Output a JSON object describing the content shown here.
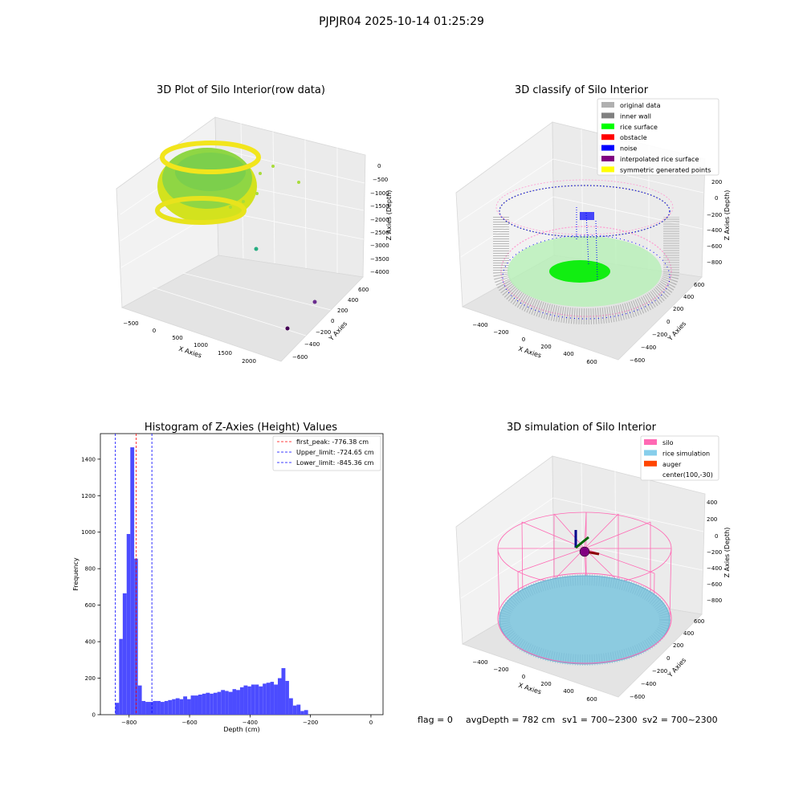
{
  "suptitle": "PJPJR04 2025-10-14 01:25:29",
  "footer": {
    "flag": "flag = 0",
    "avg_depth": "avgDepth = 782 cm",
    "sv1": "sv1 = 700~2300",
    "sv2": "sv2 = 700~2300"
  },
  "chart_data": [
    {
      "type": "scatter",
      "projection": "3d",
      "title": "3D Plot of Silo Interior(row data)",
      "xlabel": "X Axies",
      "ylabel": "Y Axies",
      "zlabel": "Z Axies (Depth)",
      "xticks": [
        "−500",
        "0",
        "500",
        "1000",
        "1500",
        "2000"
      ],
      "yticks": [
        "−600",
        "−400",
        "−200",
        "0",
        "200",
        "400",
        "600"
      ],
      "zticks": [
        "0",
        "−500",
        "−1000",
        "−1500",
        "−2000",
        "−2500",
        "−3000",
        "−3500",
        "−4000"
      ],
      "colormap": [
        "#f7e81a",
        "#a8dc3b",
        "#5cc863",
        "#26ad81",
        "#21908d",
        "#2c718e",
        "#3b518b",
        "#472a7a",
        "#440154"
      ],
      "outliers": [
        {
          "x": 1200,
          "y": -100,
          "z": -3200,
          "color": "#26ad81"
        },
        {
          "x": 2000,
          "y": 300,
          "z": -4100,
          "color": "#6a2c8e"
        },
        {
          "x": 1900,
          "y": -500,
          "z": -4200,
          "color": "#440154"
        }
      ]
    },
    {
      "type": "scatter",
      "projection": "3d",
      "title": "3D classify of Silo Interior",
      "xlabel": "X Axies",
      "ylabel": "Y Axies",
      "zlabel": "Z Axies (Depth)",
      "xticks": [
        "−400",
        "−200",
        "0",
        "200",
        "400",
        "600"
      ],
      "yticks": [
        "−600",
        "−400",
        "−200",
        "0",
        "200",
        "400",
        "600"
      ],
      "zticks": [
        "200",
        "0",
        "−200",
        "−400",
        "−600",
        "−800"
      ],
      "legend_position": "upper-right",
      "legend": [
        {
          "label": "original data",
          "color": "#b0b0b0"
        },
        {
          "label": "inner wall",
          "color": "#808080"
        },
        {
          "label": "rice surface",
          "color": "#00ff00"
        },
        {
          "label": "obstacle",
          "color": "#ff0000"
        },
        {
          "label": "noise",
          "color": "#0000ff"
        },
        {
          "label": "interpolated rice surface",
          "color": "#800080"
        },
        {
          "label": "symmetric generated points",
          "color": "#ffff00"
        }
      ]
    },
    {
      "type": "bar",
      "title": "Histogram of Z-Axies (Height) Values",
      "xlabel": "Depth (cm)",
      "ylabel": "Frequency",
      "xlim": [
        -895,
        40
      ],
      "ylim": [
        0,
        1540
      ],
      "xticks": [
        {
          "value": -800,
          "label": "−800"
        },
        {
          "value": -600,
          "label": "−600"
        },
        {
          "value": -400,
          "label": "−400"
        },
        {
          "value": -200,
          "label": "−200"
        },
        {
          "value": 0,
          "label": "0"
        }
      ],
      "yticks": [
        {
          "value": 0,
          "label": "0"
        },
        {
          "value": 200,
          "label": "200"
        },
        {
          "value": 400,
          "label": "400"
        },
        {
          "value": 600,
          "label": "600"
        },
        {
          "value": 800,
          "label": "800"
        },
        {
          "value": 1000,
          "label": "1000"
        },
        {
          "value": 1200,
          "label": "1200"
        },
        {
          "value": 1400,
          "label": "1400"
        }
      ],
      "bar_color": "#4c4cff",
      "bins": [
        {
          "x0": -846,
          "x1": -833,
          "count": 65
        },
        {
          "x0": -833,
          "x1": -821,
          "count": 415
        },
        {
          "x0": -821,
          "x1": -808,
          "count": 665
        },
        {
          "x0": -808,
          "x1": -796,
          "count": 990
        },
        {
          "x0": -796,
          "x1": -783,
          "count": 1465
        },
        {
          "x0": -783,
          "x1": -771,
          "count": 855
        },
        {
          "x0": -771,
          "x1": -758,
          "count": 160
        },
        {
          "x0": -758,
          "x1": -746,
          "count": 75
        },
        {
          "x0": -746,
          "x1": -733,
          "count": 70
        },
        {
          "x0": -733,
          "x1": -721,
          "count": 70
        },
        {
          "x0": -721,
          "x1": -708,
          "count": 75
        },
        {
          "x0": -708,
          "x1": -696,
          "count": 75
        },
        {
          "x0": -696,
          "x1": -683,
          "count": 70
        },
        {
          "x0": -683,
          "x1": -671,
          "count": 75
        },
        {
          "x0": -671,
          "x1": -658,
          "count": 80
        },
        {
          "x0": -658,
          "x1": -646,
          "count": 85
        },
        {
          "x0": -646,
          "x1": -633,
          "count": 90
        },
        {
          "x0": -633,
          "x1": -621,
          "count": 85
        },
        {
          "x0": -621,
          "x1": -608,
          "count": 100
        },
        {
          "x0": -608,
          "x1": -596,
          "count": 85
        },
        {
          "x0": -596,
          "x1": -583,
          "count": 105
        },
        {
          "x0": -583,
          "x1": -571,
          "count": 105
        },
        {
          "x0": -571,
          "x1": -558,
          "count": 110
        },
        {
          "x0": -558,
          "x1": -546,
          "count": 115
        },
        {
          "x0": -546,
          "x1": -533,
          "count": 120
        },
        {
          "x0": -533,
          "x1": -521,
          "count": 115
        },
        {
          "x0": -521,
          "x1": -508,
          "count": 120
        },
        {
          "x0": -508,
          "x1": -496,
          "count": 125
        },
        {
          "x0": -496,
          "x1": -483,
          "count": 135
        },
        {
          "x0": -483,
          "x1": -471,
          "count": 130
        },
        {
          "x0": -471,
          "x1": -458,
          "count": 125
        },
        {
          "x0": -458,
          "x1": -446,
          "count": 140
        },
        {
          "x0": -446,
          "x1": -433,
          "count": 135
        },
        {
          "x0": -433,
          "x1": -421,
          "count": 150
        },
        {
          "x0": -421,
          "x1": -408,
          "count": 160
        },
        {
          "x0": -408,
          "x1": -396,
          "count": 155
        },
        {
          "x0": -396,
          "x1": -383,
          "count": 165
        },
        {
          "x0": -383,
          "x1": -371,
          "count": 165
        },
        {
          "x0": -371,
          "x1": -358,
          "count": 155
        },
        {
          "x0": -358,
          "x1": -346,
          "count": 170
        },
        {
          "x0": -346,
          "x1": -333,
          "count": 175
        },
        {
          "x0": -333,
          "x1": -321,
          "count": 180
        },
        {
          "x0": -321,
          "x1": -308,
          "count": 165
        },
        {
          "x0": -308,
          "x1": -296,
          "count": 200
        },
        {
          "x0": -296,
          "x1": -283,
          "count": 255
        },
        {
          "x0": -283,
          "x1": -271,
          "count": 185
        },
        {
          "x0": -271,
          "x1": -258,
          "count": 90
        },
        {
          "x0": -258,
          "x1": -246,
          "count": 50
        },
        {
          "x0": -246,
          "x1": -233,
          "count": 55
        },
        {
          "x0": -233,
          "x1": -221,
          "count": 20
        },
        {
          "x0": -221,
          "x1": -208,
          "count": 25
        }
      ],
      "vlines": [
        {
          "x": -776.38,
          "color": "#ff0000",
          "label": "first_peak: -776.38 cm"
        },
        {
          "x": -724.65,
          "color": "#0000ff",
          "label": "Upper_limit: -724.65 cm"
        },
        {
          "x": -845.36,
          "color": "#0000ff",
          "label": "Lower_limit: -845.36 cm"
        }
      ],
      "legend_position": "upper-right"
    },
    {
      "type": "scatter",
      "projection": "3d",
      "title": "3D simulation of Silo Interior",
      "xlabel": "X Axies",
      "ylabel": "Y Axies",
      "zlabel": "Z Axies (Depth)",
      "xticks": [
        "−400",
        "−200",
        "0",
        "200",
        "400",
        "600"
      ],
      "yticks": [
        "−600",
        "−400",
        "−200",
        "0",
        "200",
        "400",
        "600"
      ],
      "zticks": [
        "400",
        "200",
        "0",
        "−200",
        "−400",
        "−600",
        "−800"
      ],
      "legend_position": "upper-right",
      "legend": [
        {
          "label": "silo",
          "color": "#ff69b4"
        },
        {
          "label": "rice simulation",
          "color": "#87ceeb"
        },
        {
          "label": "auger",
          "color": "#ff4500"
        },
        {
          "label": "center(100,-30)",
          "color": ""
        }
      ]
    }
  ]
}
